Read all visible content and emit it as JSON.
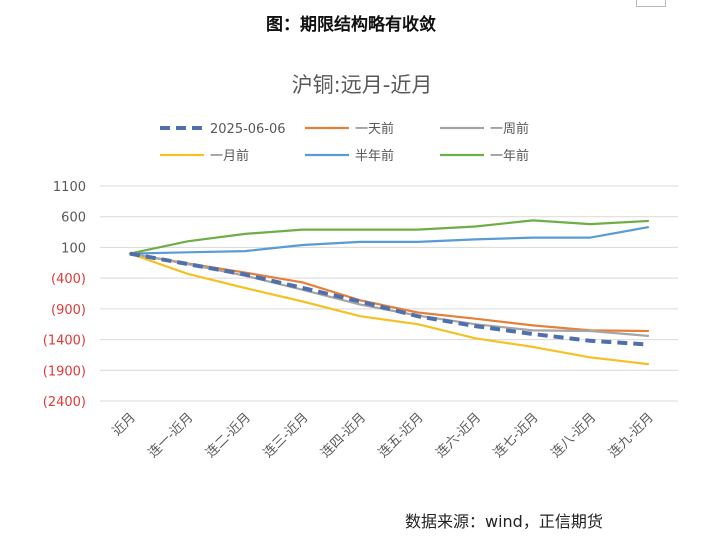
{
  "figure_title": "图：期限结构略有收敛",
  "source_note": "数据来源：wind，正信期货",
  "chart_data": {
    "type": "line",
    "title": "沪铜:远月-近月",
    "xlabel": "",
    "ylabel": "",
    "categories": [
      "近月",
      "连一-近月",
      "连二-近月",
      "连三-近月",
      "连四-近月",
      "连五-近月",
      "连六-近月",
      "连七-近月",
      "连八-近月",
      "连九-近月"
    ],
    "y_ticks": [
      "1100",
      "600",
      "100",
      "(400)",
      "(900)",
      "(1400)",
      "(1900)",
      "(2400)"
    ],
    "y_tick_values": [
      1100,
      600,
      100,
      -400,
      -900,
      -1400,
      -1900,
      -2400
    ],
    "ylim": [
      -2400,
      1100
    ],
    "grid": true,
    "legend_position": "top",
    "series": [
      {
        "name": "2025-06-06",
        "color": "#4f6fad",
        "style": "dashed-bold",
        "values": [
          0,
          -170,
          -340,
          -560,
          -780,
          -1020,
          -1180,
          -1310,
          -1420,
          -1480
        ]
      },
      {
        "name": "一天前",
        "color": "#e5803b",
        "style": "solid",
        "values": [
          0,
          -160,
          -310,
          -470,
          -760,
          -960,
          -1060,
          -1170,
          -1250,
          -1260
        ]
      },
      {
        "name": "一周前",
        "color": "#a5a5a5",
        "style": "solid",
        "values": [
          0,
          -170,
          -360,
          -590,
          -830,
          -1010,
          -1150,
          -1250,
          -1260,
          -1340
        ]
      },
      {
        "name": "一月前",
        "color": "#f5c125",
        "style": "solid",
        "values": [
          0,
          -330,
          -560,
          -780,
          -1020,
          -1150,
          -1380,
          -1520,
          -1690,
          -1800
        ]
      },
      {
        "name": "半年前",
        "color": "#5b9bd5",
        "style": "solid",
        "values": [
          0,
          20,
          40,
          140,
          190,
          190,
          230,
          260,
          260,
          430
        ]
      },
      {
        "name": "一年前",
        "color": "#70ad47",
        "style": "solid",
        "values": [
          0,
          200,
          320,
          390,
          390,
          390,
          440,
          540,
          480,
          530
        ]
      }
    ]
  }
}
